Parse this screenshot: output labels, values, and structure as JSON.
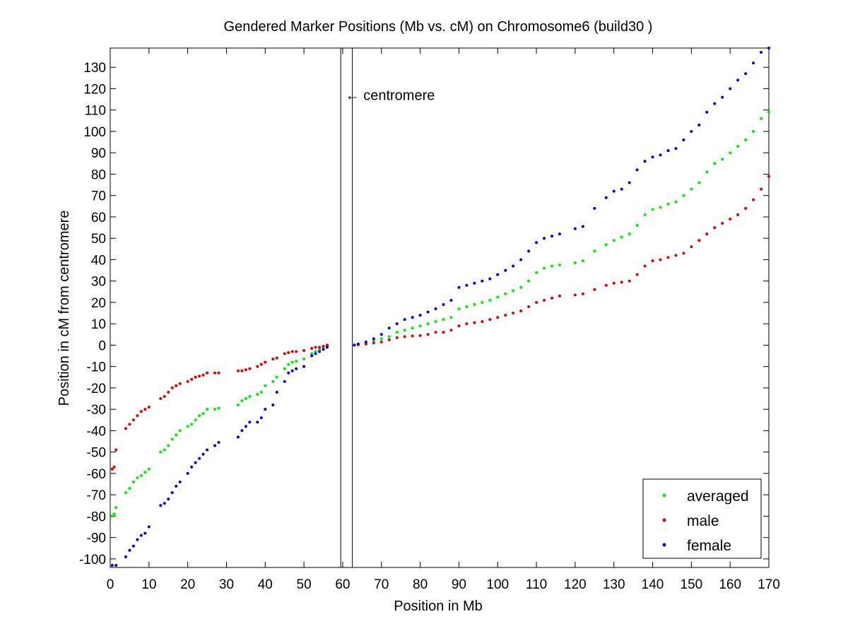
{
  "chart_data": {
    "type": "scatter",
    "title": "Gendered Marker Positions (Mb vs. cM) on Chromosome6 (build30 )",
    "xlabel": "Position in Mb",
    "ylabel": "Position in cM from centromere",
    "xlim": [
      0,
      170
    ],
    "ylim": [
      -104,
      139
    ],
    "xticks": [
      0,
      10,
      20,
      30,
      40,
      50,
      60,
      70,
      80,
      90,
      100,
      110,
      120,
      130,
      140,
      150,
      160,
      170
    ],
    "yticks": [
      -100,
      -90,
      -80,
      -70,
      -60,
      -50,
      -40,
      -30,
      -20,
      -10,
      0,
      10,
      20,
      30,
      40,
      50,
      60,
      70,
      80,
      90,
      100,
      110,
      120,
      130
    ],
    "grid": false,
    "legend_position": "bottom-right",
    "centromere": {
      "x": [
        59.5,
        62.5
      ],
      "label": "← centromere"
    },
    "series": [
      {
        "name": "averaged",
        "color": "#00ee00",
        "points": [
          [
            0.5,
            -80
          ],
          [
            1,
            -79
          ],
          [
            1.5,
            -76
          ],
          [
            4,
            -69
          ],
          [
            5,
            -67
          ],
          [
            6,
            -64
          ],
          [
            7,
            -62
          ],
          [
            8,
            -61
          ],
          [
            9,
            -59.5
          ],
          [
            10,
            -58
          ],
          [
            13,
            -50
          ],
          [
            14,
            -49
          ],
          [
            15,
            -47
          ],
          [
            16,
            -44
          ],
          [
            17,
            -42
          ],
          [
            18,
            -40
          ],
          [
            20,
            -38
          ],
          [
            21,
            -37
          ],
          [
            22,
            -35
          ],
          [
            23,
            -33
          ],
          [
            24,
            -32
          ],
          [
            25,
            -30
          ],
          [
            27,
            -30
          ],
          [
            28,
            -29.5
          ],
          [
            33,
            -28
          ],
          [
            34,
            -26
          ],
          [
            35,
            -25
          ],
          [
            36,
            -24
          ],
          [
            38,
            -23
          ],
          [
            39,
            -22
          ],
          [
            40,
            -19
          ],
          [
            42,
            -17
          ],
          [
            43,
            -15
          ],
          [
            45,
            -11
          ],
          [
            46,
            -9
          ],
          [
            47,
            -8
          ],
          [
            48,
            -7.5
          ],
          [
            50,
            -6.5
          ],
          [
            52,
            -4
          ],
          [
            53,
            -3
          ],
          [
            54,
            -2
          ],
          [
            55,
            -1.5
          ],
          [
            56,
            -0.5
          ],
          [
            63,
            0
          ],
          [
            64,
            0.5
          ],
          [
            66,
            1
          ],
          [
            68,
            2
          ],
          [
            70,
            3
          ],
          [
            72,
            4
          ],
          [
            74,
            6
          ],
          [
            76,
            7
          ],
          [
            78,
            8
          ],
          [
            80,
            9
          ],
          [
            82,
            10
          ],
          [
            84,
            11
          ],
          [
            86,
            12
          ],
          [
            88,
            13
          ],
          [
            90,
            17
          ],
          [
            92,
            18
          ],
          [
            94,
            19
          ],
          [
            96,
            20
          ],
          [
            98,
            21
          ],
          [
            100,
            22.5
          ],
          [
            102,
            24
          ],
          [
            104,
            25.5
          ],
          [
            106,
            27
          ],
          [
            108,
            30
          ],
          [
            110,
            34
          ],
          [
            112,
            36
          ],
          [
            114,
            37
          ],
          [
            116,
            37.5
          ],
          [
            120,
            38.5
          ],
          [
            122,
            39.5
          ],
          [
            125,
            44
          ],
          [
            128,
            47
          ],
          [
            130,
            49
          ],
          [
            132,
            50.5
          ],
          [
            134,
            52
          ],
          [
            136,
            56
          ],
          [
            138,
            61
          ],
          [
            140,
            63.5
          ],
          [
            142,
            64.5
          ],
          [
            144,
            66
          ],
          [
            146,
            67
          ],
          [
            148,
            70
          ],
          [
            150,
            73
          ],
          [
            152,
            76
          ],
          [
            154,
            81
          ],
          [
            156,
            85
          ],
          [
            158,
            87
          ],
          [
            160,
            90
          ],
          [
            162,
            93
          ],
          [
            164,
            96
          ],
          [
            166,
            100
          ],
          [
            168,
            106
          ],
          [
            170,
            109
          ]
        ]
      },
      {
        "name": "male",
        "color": "#dd0000",
        "points": [
          [
            0.5,
            -58
          ],
          [
            1,
            -57
          ],
          [
            1.5,
            -49
          ],
          [
            4,
            -39
          ],
          [
            5,
            -37
          ],
          [
            6,
            -35
          ],
          [
            7,
            -33
          ],
          [
            8,
            -31
          ],
          [
            9,
            -30
          ],
          [
            10,
            -29
          ],
          [
            13,
            -25
          ],
          [
            14,
            -24
          ],
          [
            15,
            -22
          ],
          [
            16,
            -20
          ],
          [
            17,
            -19
          ],
          [
            18,
            -18
          ],
          [
            20,
            -17
          ],
          [
            21,
            -16
          ],
          [
            22,
            -15
          ],
          [
            23,
            -14.5
          ],
          [
            24,
            -14
          ],
          [
            25,
            -13
          ],
          [
            27,
            -13
          ],
          [
            28,
            -13
          ],
          [
            33,
            -12
          ],
          [
            34,
            -12
          ],
          [
            35,
            -11.5
          ],
          [
            36,
            -11
          ],
          [
            38,
            -10
          ],
          [
            39,
            -9
          ],
          [
            40,
            -8
          ],
          [
            42,
            -6.5
          ],
          [
            43,
            -6
          ],
          [
            45,
            -4
          ],
          [
            46,
            -3.5
          ],
          [
            47,
            -3
          ],
          [
            48,
            -3
          ],
          [
            50,
            -2.5
          ],
          [
            52,
            -1.5
          ],
          [
            53,
            -1
          ],
          [
            54,
            -1
          ],
          [
            55,
            -0.5
          ],
          [
            56,
            0
          ],
          [
            63,
            0
          ],
          [
            64,
            0.2
          ],
          [
            66,
            0.5
          ],
          [
            68,
            1
          ],
          [
            70,
            1.5
          ],
          [
            72,
            2.5
          ],
          [
            74,
            3.5
          ],
          [
            76,
            4
          ],
          [
            78,
            4.3
          ],
          [
            80,
            4.5
          ],
          [
            82,
            5
          ],
          [
            84,
            6
          ],
          [
            86,
            6
          ],
          [
            88,
            7
          ],
          [
            90,
            9
          ],
          [
            92,
            10
          ],
          [
            94,
            10.5
          ],
          [
            96,
            11
          ],
          [
            98,
            12
          ],
          [
            100,
            13
          ],
          [
            102,
            14
          ],
          [
            104,
            15
          ],
          [
            106,
            16
          ],
          [
            108,
            18
          ],
          [
            110,
            20
          ],
          [
            112,
            21
          ],
          [
            114,
            22
          ],
          [
            116,
            23
          ],
          [
            120,
            23.5
          ],
          [
            122,
            24
          ],
          [
            125,
            26
          ],
          [
            128,
            28
          ],
          [
            130,
            29
          ],
          [
            132,
            29.5
          ],
          [
            134,
            30
          ],
          [
            136,
            33
          ],
          [
            138,
            37
          ],
          [
            140,
            39.5
          ],
          [
            142,
            40
          ],
          [
            144,
            41
          ],
          [
            146,
            42
          ],
          [
            148,
            43
          ],
          [
            150,
            46
          ],
          [
            152,
            49
          ],
          [
            154,
            52
          ],
          [
            156,
            55
          ],
          [
            158,
            57
          ],
          [
            160,
            59
          ],
          [
            162,
            61
          ],
          [
            164,
            64
          ],
          [
            166,
            68
          ],
          [
            168,
            73
          ],
          [
            170,
            79
          ]
        ]
      },
      {
        "name": "female",
        "color": "#0000dd",
        "points": [
          [
            0.5,
            -103
          ],
          [
            1.5,
            -103
          ],
          [
            4,
            -99
          ],
          [
            5,
            -96
          ],
          [
            6,
            -94
          ],
          [
            7,
            -91
          ],
          [
            8,
            -89
          ],
          [
            9,
            -88
          ],
          [
            10,
            -85
          ],
          [
            13,
            -75
          ],
          [
            14,
            -74
          ],
          [
            15,
            -72
          ],
          [
            16,
            -69
          ],
          [
            17,
            -66
          ],
          [
            18,
            -64
          ],
          [
            20,
            -60
          ],
          [
            21,
            -57
          ],
          [
            22,
            -55
          ],
          [
            23,
            -53
          ],
          [
            24,
            -51
          ],
          [
            25,
            -49
          ],
          [
            27,
            -47
          ],
          [
            28,
            -45.5
          ],
          [
            33,
            -43
          ],
          [
            34,
            -40
          ],
          [
            35,
            -38
          ],
          [
            36,
            -36
          ],
          [
            38,
            -36
          ],
          [
            39,
            -34
          ],
          [
            40,
            -30
          ],
          [
            42,
            -28
          ],
          [
            43,
            -22
          ],
          [
            45,
            -17
          ],
          [
            46,
            -13
          ],
          [
            47,
            -12
          ],
          [
            48,
            -11
          ],
          [
            50,
            -10
          ],
          [
            52,
            -5
          ],
          [
            53,
            -4
          ],
          [
            54,
            -3
          ],
          [
            55,
            -2
          ],
          [
            56,
            -1
          ],
          [
            63,
            0
          ],
          [
            64,
            0.5
          ],
          [
            66,
            1.5
          ],
          [
            68,
            3
          ],
          [
            70,
            5
          ],
          [
            72,
            8
          ],
          [
            74,
            10
          ],
          [
            76,
            12
          ],
          [
            78,
            13
          ],
          [
            80,
            14
          ],
          [
            82,
            15.5
          ],
          [
            84,
            17
          ],
          [
            86,
            19
          ],
          [
            88,
            21
          ],
          [
            90,
            27
          ],
          [
            92,
            28
          ],
          [
            94,
            29
          ],
          [
            96,
            30
          ],
          [
            98,
            31
          ],
          [
            100,
            33
          ],
          [
            102,
            35
          ],
          [
            104,
            37
          ],
          [
            106,
            40
          ],
          [
            108,
            44
          ],
          [
            110,
            48
          ],
          [
            112,
            50
          ],
          [
            114,
            51
          ],
          [
            116,
            52
          ],
          [
            120,
            54.5
          ],
          [
            122,
            55.5
          ],
          [
            125,
            64
          ],
          [
            128,
            69
          ],
          [
            130,
            72
          ],
          [
            132,
            73
          ],
          [
            134,
            76
          ],
          [
            136,
            82
          ],
          [
            138,
            86
          ],
          [
            140,
            88
          ],
          [
            142,
            89
          ],
          [
            144,
            91
          ],
          [
            146,
            92
          ],
          [
            148,
            96
          ],
          [
            150,
            100
          ],
          [
            152,
            103
          ],
          [
            154,
            109
          ],
          [
            156,
            113
          ],
          [
            158,
            116
          ],
          [
            160,
            120
          ],
          [
            162,
            124
          ],
          [
            164,
            127
          ],
          [
            166,
            132
          ],
          [
            168,
            137
          ],
          [
            170,
            139
          ]
        ]
      }
    ]
  }
}
